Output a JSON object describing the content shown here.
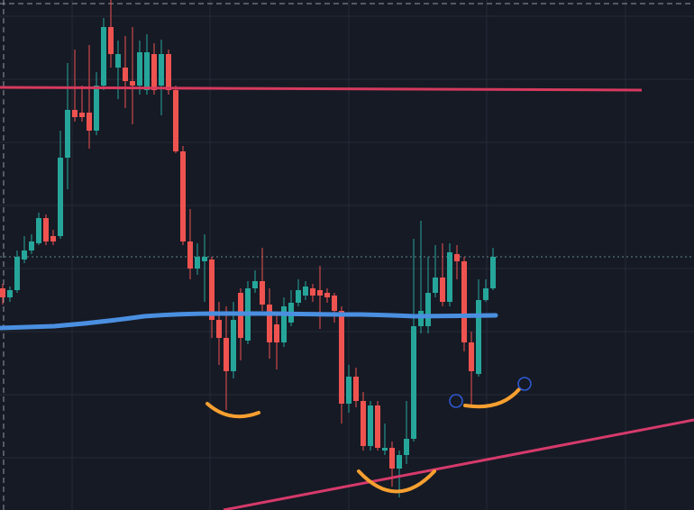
{
  "chart_data": {
    "type": "candlestick",
    "up_color": "#26a69a",
    "down_color": "#ef5350",
    "ylim": [
      0,
      566
    ],
    "open": [
      246,
      236,
      244,
      278,
      288,
      296,
      324,
      304,
      304,
      391,
      444,
      441,
      441,
      421,
      471,
      536,
      491,
      491,
      476,
      471,
      466,
      506,
      471,
      506,
      466,
      398,
      298,
      268,
      276,
      278,
      211,
      191,
      154,
      241,
      188,
      246,
      254,
      228,
      206,
      186,
      208,
      230,
      238,
      246,
      244,
      241,
      238,
      221,
      118,
      148,
      121,
      71,
      116,
      66,
      69,
      46,
      61,
      79,
      204,
      204,
      241,
      258,
      231,
      284,
      276,
      186,
      151,
      233,
      246
    ],
    "high": [
      251,
      248,
      288,
      304,
      306,
      330,
      328,
      311,
      421,
      496,
      511,
      471,
      516,
      486,
      546,
      566,
      521,
      526,
      536,
      521,
      528,
      518,
      522,
      511,
      471,
      404,
      334,
      296,
      306,
      281,
      231,
      226,
      231,
      246,
      254,
      266,
      291,
      246,
      218,
      236,
      244,
      256,
      254,
      251,
      271,
      246,
      241,
      226,
      161,
      158,
      131,
      121,
      121,
      96,
      76,
      66,
      121,
      301,
      321,
      281,
      294,
      296,
      296,
      294,
      281,
      198,
      256,
      256,
      291
    ],
    "low": [
      228,
      231,
      241,
      274,
      284,
      294,
      294,
      294,
      301,
      356,
      431,
      431,
      401,
      416,
      466,
      491,
      456,
      446,
      428,
      461,
      461,
      461,
      438,
      461,
      396,
      294,
      256,
      261,
      231,
      191,
      161,
      111,
      146,
      166,
      184,
      241,
      221,
      168,
      156,
      181,
      204,
      226,
      233,
      231,
      201,
      230,
      208,
      96,
      108,
      114,
      66,
      66,
      66,
      61,
      26,
      14,
      51,
      76,
      196,
      196,
      236,
      226,
      226,
      256,
      176,
      116,
      148,
      231,
      244
    ],
    "close": [
      236,
      244,
      281,
      288,
      298,
      324,
      298,
      298,
      391,
      444,
      436,
      436,
      421,
      471,
      536,
      506,
      506,
      476,
      471,
      508,
      508,
      466,
      506,
      466,
      398,
      298,
      268,
      281,
      281,
      211,
      191,
      154,
      211,
      191,
      246,
      254,
      228,
      186,
      186,
      226,
      230,
      244,
      248,
      238,
      238,
      236,
      221,
      118,
      148,
      121,
      71,
      116,
      69,
      69,
      46,
      61,
      79,
      204,
      221,
      241,
      258,
      231,
      286,
      276,
      186,
      154,
      233,
      246,
      281
    ]
  }
}
